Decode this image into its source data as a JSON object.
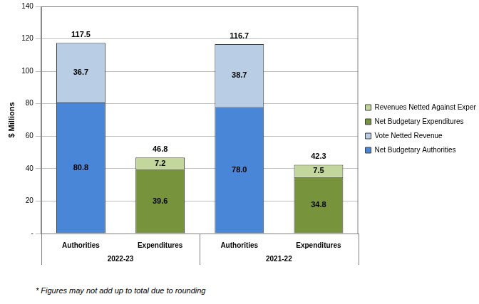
{
  "chart_data": {
    "type": "bar",
    "y_label": "$ Millions",
    "categories": [
      "Authorities",
      "Expenditures",
      "Authorities",
      "Expenditures"
    ],
    "groups": [
      {
        "label": "2022-23",
        "count": 2
      },
      {
        "label": "2021-22",
        "count": 2
      }
    ],
    "series": [
      {
        "name": "Net Budgetary Authorities",
        "color": "#4a86d8",
        "values": [
          80.8,
          null,
          78.0,
          null
        ],
        "value_labels": [
          "80.8",
          null,
          "78.0",
          null
        ]
      },
      {
        "name": "Vote Netted Revenue",
        "color": "#b9cde5",
        "values": [
          36.7,
          null,
          38.7,
          null
        ]
      },
      {
        "name": "Net Budgetary Expenditures",
        "color": "#77933c",
        "values": [
          null,
          39.6,
          null,
          34.8
        ]
      },
      {
        "name": "Revenues Netted Against Expenditures",
        "color": "#c3d69b",
        "values": [
          null,
          7.2,
          null,
          7.5
        ]
      }
    ],
    "totals": [
      117.5,
      46.8,
      116.7,
      42.3
    ],
    "ylim": [
      0,
      140
    ],
    "yticks": [
      {
        "value": 0,
        "label": "-"
      },
      20,
      40,
      60,
      80,
      100,
      120,
      140
    ],
    "stacked": true,
    "grid": true,
    "data_labels": true,
    "legend": "right",
    "footnote": "* Figures may not add up to total due to rounding"
  }
}
